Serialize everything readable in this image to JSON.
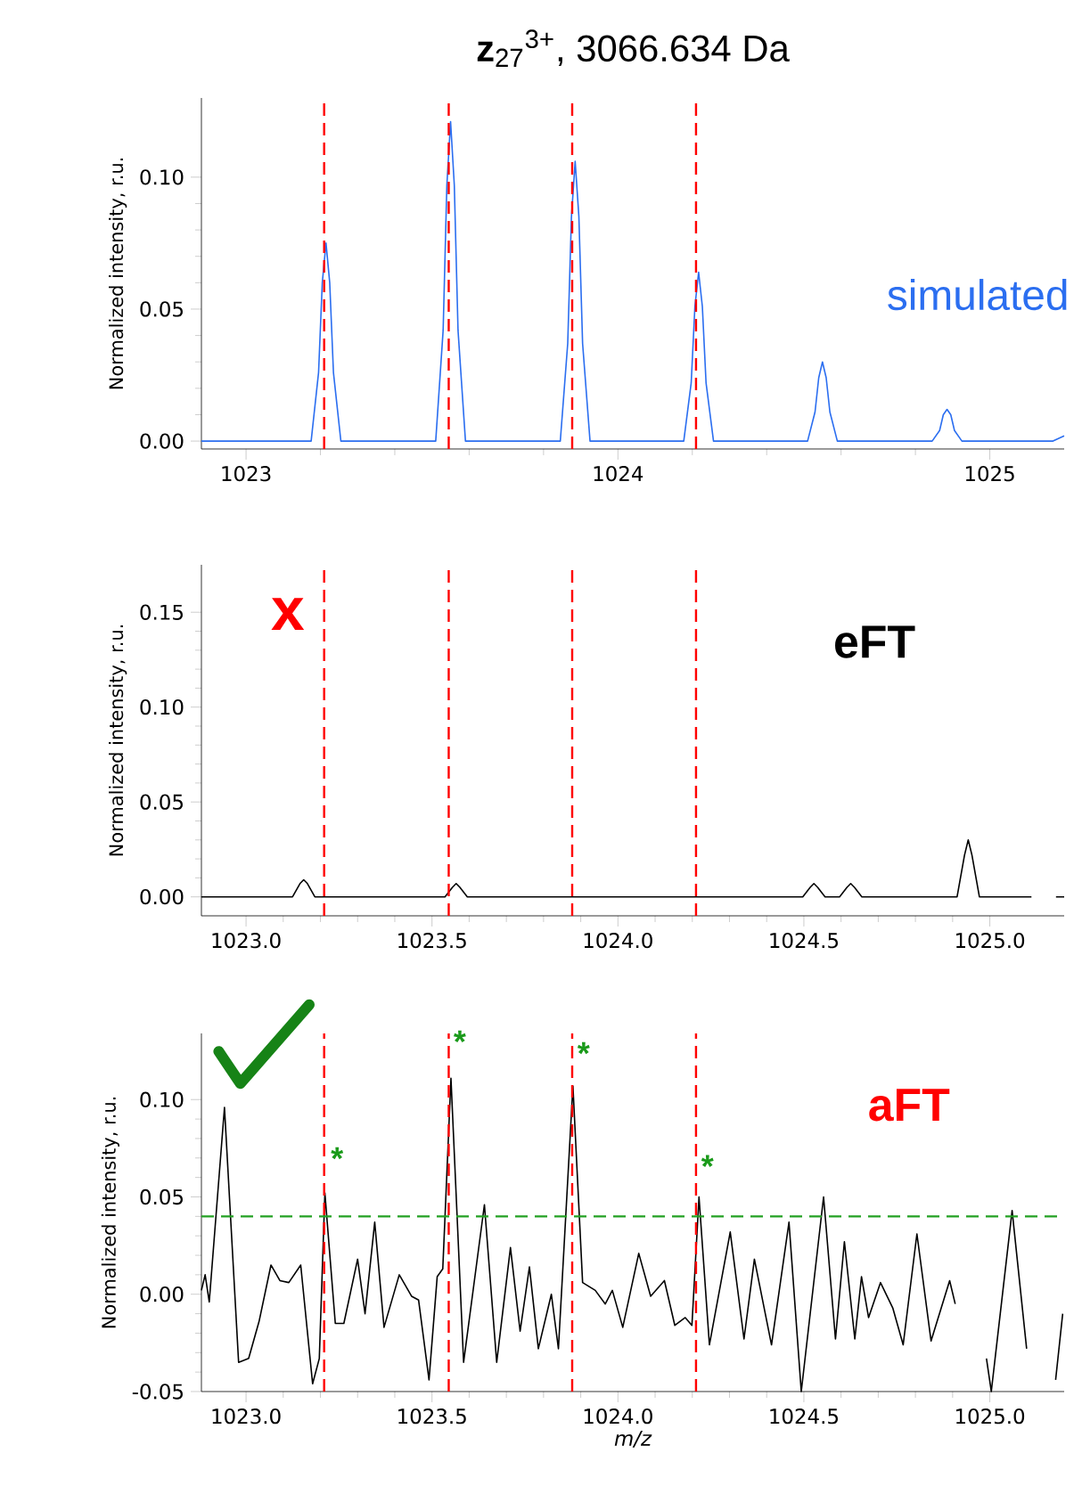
{
  "chart_data": [
    {
      "type": "line",
      "title": "**z**$_{27}$$^{3+}$, 3066.634 Da",
      "ylabel": "Normalized intensity, r.u.",
      "xlim": [
        1022.88,
        1025.2
      ],
      "ylim": [
        -0.003,
        0.13
      ],
      "xticks": [
        1023,
        1024,
        1025
      ],
      "yticks": [
        {
          "value": 0,
          "label": "0.00"
        },
        {
          "value": 0.05,
          "label": "0.05"
        },
        {
          "value": 0.1,
          "label": "0.10"
        }
      ],
      "series": [
        {
          "color": "#2b6ef0",
          "x": [
            1022.88,
            1023.175,
            1023.195,
            1023.205,
            1023.215,
            1023.225,
            1023.235,
            1023.255,
            1023.51,
            1023.53,
            1023.54,
            1023.55,
            1023.56,
            1023.57,
            1023.59,
            1023.845,
            1023.865,
            1023.875,
            1023.885,
            1023.895,
            1023.905,
            1023.925,
            1024.177,
            1024.197,
            1024.207,
            1024.217,
            1024.227,
            1024.237,
            1024.257,
            1024.51,
            1024.53,
            1024.54,
            1024.55,
            1024.56,
            1024.57,
            1024.59,
            1024.845,
            1024.865,
            1024.875,
            1024.885,
            1024.895,
            1024.905,
            1024.925,
            1025.17,
            1025.2
          ],
          "values": [
            0,
            0,
            0.026,
            0.06,
            0.075,
            0.06,
            0.026,
            0,
            0,
            0.042,
            0.097,
            0.121,
            0.097,
            0.042,
            0,
            0,
            0.037,
            0.085,
            0.106,
            0.085,
            0.037,
            0,
            0,
            0.022,
            0.051,
            0.064,
            0.051,
            0.022,
            0,
            0,
            0.011,
            0.024,
            0.03,
            0.024,
            0.011,
            0,
            0,
            0.004,
            0.01,
            0.012,
            0.01,
            0.004,
            0,
            0,
            0.002
          ]
        }
      ],
      "ref_lines": [
        {
          "axis": "x",
          "value": 1023.21,
          "color": "#ff0000",
          "line_style": "dashed"
        },
        {
          "axis": "x",
          "value": 1023.545,
          "color": "#ff0000",
          "line_style": "dashed"
        },
        {
          "axis": "x",
          "value": 1023.877,
          "color": "#ff0000",
          "line_style": "dashed"
        },
        {
          "axis": "x",
          "value": 1024.21,
          "color": "#ff0000",
          "line_style": "dashed"
        }
      ],
      "annotations": [
        "simulated"
      ]
    },
    {
      "type": "line",
      "ylabel": "Normalized intensity, r.u.",
      "xlim": [
        1022.88,
        1025.2
      ],
      "ylim": [
        -0.01,
        0.175
      ],
      "xticks": [
        {
          "value": 1023,
          "label": "1023.0"
        },
        {
          "value": 1023.5,
          "label": "1023.5"
        },
        {
          "value": 1024,
          "label": "1024.0"
        },
        {
          "value": 1024.5,
          "label": "1024.5"
        },
        {
          "value": 1025,
          "label": "1025.0"
        }
      ],
      "yticks": [
        {
          "value": 0,
          "label": "0.00"
        },
        {
          "value": 0.05,
          "label": "0.05"
        },
        {
          "value": 0.1,
          "label": "0.10"
        },
        {
          "value": 0.15,
          "label": "0.15"
        }
      ],
      "series": [
        {
          "color": "#000000",
          "x": [
            1022.88,
            1023.125,
            1023.145,
            1023.155,
            1023.165,
            1023.185,
            1023.535,
            1023.555,
            1023.565,
            1023.575,
            1023.595,
            1024.497,
            1024.517,
            1024.527,
            1024.537,
            1024.557,
            1024.596,
            1024.616,
            1024.626,
            1024.636,
            1024.656,
            1024.912,
            1024.932,
            1024.942,
            1024.952,
            1024.972,
            1025.112,
            1025.138,
            1025.152,
            1025.178,
            1025.2
          ],
          "values": [
            0,
            0,
            0.007,
            0.009,
            0.007,
            0,
            0,
            0.005,
            0.007,
            0.005,
            0,
            0,
            0.005,
            0.007,
            0.005,
            0,
            0,
            0.005,
            0.007,
            0.005,
            0,
            0,
            0.022,
            0.03,
            0.022,
            0,
            0,
            null,
            null,
            0,
            0
          ]
        }
      ],
      "ref_lines": [
        {
          "axis": "x",
          "value": 1023.21,
          "color": "#ff0000",
          "line_style": "dashed"
        },
        {
          "axis": "x",
          "value": 1023.545,
          "color": "#ff0000",
          "line_style": "dashed"
        },
        {
          "axis": "x",
          "value": 1023.877,
          "color": "#ff0000",
          "line_style": "dashed"
        },
        {
          "axis": "x",
          "value": 1024.21,
          "color": "#ff0000",
          "line_style": "dashed"
        }
      ],
      "annotations": [
        "x",
        "eFT"
      ]
    },
    {
      "type": "line",
      "xlabel": "m/z",
      "ylabel": "Normalized intensity, r.u.",
      "xlim": [
        1022.88,
        1025.2
      ],
      "ylim": [
        -0.05,
        0.134
      ],
      "xticks": [
        {
          "value": 1023,
          "label": "1023.0"
        },
        {
          "value": 1023.5,
          "label": "1023.5"
        },
        {
          "value": 1024,
          "label": "1024.0"
        },
        {
          "value": 1024.5,
          "label": "1024.5"
        },
        {
          "value": 1025,
          "label": "1025.0"
        }
      ],
      "yticks": [
        {
          "value": -0.05,
          "label": "-0.05"
        },
        {
          "value": 0,
          "label": "0.00"
        },
        {
          "value": 0.05,
          "label": "0.05"
        },
        {
          "value": 0.1,
          "label": "0.10"
        }
      ],
      "series": [
        {
          "color": "#000000",
          "x": [
            1022.88,
            1022.89,
            1022.901,
            1022.942,
            1022.98,
            1023.007,
            1023.035,
            1023.067,
            1023.091,
            1023.115,
            1023.147,
            1023.179,
            1023.197,
            1023.212,
            1023.24,
            1023.263,
            1023.3,
            1023.32,
            1023.346,
            1023.371,
            1023.412,
            1023.445,
            1023.464,
            1023.492,
            1023.514,
            1023.529,
            1023.551,
            1023.585,
            1023.641,
            1023.674,
            1023.711,
            1023.737,
            1023.762,
            1023.786,
            1023.821,
            1023.84,
            1023.879,
            1023.905,
            1023.939,
            1023.966,
            1023.985,
            1024.013,
            1024.056,
            1024.088,
            1024.125,
            1024.153,
            1024.181,
            1024.199,
            1024.218,
            1024.246,
            1024.302,
            1024.339,
            1024.367,
            1024.413,
            1024.46,
            1024.493,
            1024.553,
            1024.585,
            1024.609,
            1024.637,
            1024.655,
            1024.674,
            1024.706,
            1024.739,
            1024.767,
            1024.804,
            1024.842,
            1024.892,
            1024.907,
            1024.931,
            1024.975,
            1024.991,
            1025.004,
            1025.06,
            1025.099,
            1025.125,
            1025.153,
            1025.177,
            1025.196
          ],
          "values": [
            0.002,
            0.01,
            -0.004,
            0.096,
            -0.035,
            -0.033,
            -0.014,
            0.015,
            0.007,
            0.006,
            0.015,
            -0.046,
            -0.033,
            0.052,
            -0.015,
            -0.015,
            0.018,
            -0.01,
            0.037,
            -0.017,
            0.01,
            -0.001,
            -0.003,
            -0.044,
            0.009,
            0.013,
            0.111,
            -0.035,
            0.046,
            -0.035,
            0.024,
            -0.019,
            0.014,
            -0.028,
            0,
            -0.028,
            0.107,
            0.006,
            0.002,
            -0.005,
            0.002,
            -0.017,
            0.021,
            -0.001,
            0.007,
            -0.016,
            -0.012,
            -0.016,
            0.05,
            -0.026,
            0.032,
            -0.023,
            0.018,
            -0.026,
            0.037,
            -0.05,
            0.05,
            -0.023,
            0.027,
            -0.023,
            0.009,
            -0.012,
            0.006,
            -0.007,
            -0.026,
            0.031,
            -0.024,
            0.007,
            -0.005,
            null,
            null,
            -0.033,
            -0.05,
            0.043,
            -0.028,
            null,
            null,
            -0.044,
            -0.01
          ]
        }
      ],
      "ref_lines": [
        {
          "axis": "x",
          "value": 1023.21,
          "color": "#ff0000",
          "line_style": "dashed"
        },
        {
          "axis": "x",
          "value": 1023.545,
          "color": "#ff0000",
          "line_style": "dashed"
        },
        {
          "axis": "x",
          "value": 1023.877,
          "color": "#ff0000",
          "line_style": "dashed"
        },
        {
          "axis": "x",
          "value": 1024.21,
          "color": "#ff0000",
          "line_style": "dashed"
        },
        {
          "axis": "y",
          "value": 0.04,
          "color": "#22a022",
          "line_style": "dashed"
        }
      ],
      "annotations": [
        "aFT",
        {
          "text": "*",
          "x": 1023.227,
          "y": 0.064
        },
        {
          "text": "*",
          "x": 1023.557,
          "y": 0.124
        },
        {
          "text": "*",
          "x": 1023.89,
          "y": 0.118
        },
        {
          "text": "*",
          "x": 1024.223,
          "y": 0.06
        }
      ]
    }
  ]
}
